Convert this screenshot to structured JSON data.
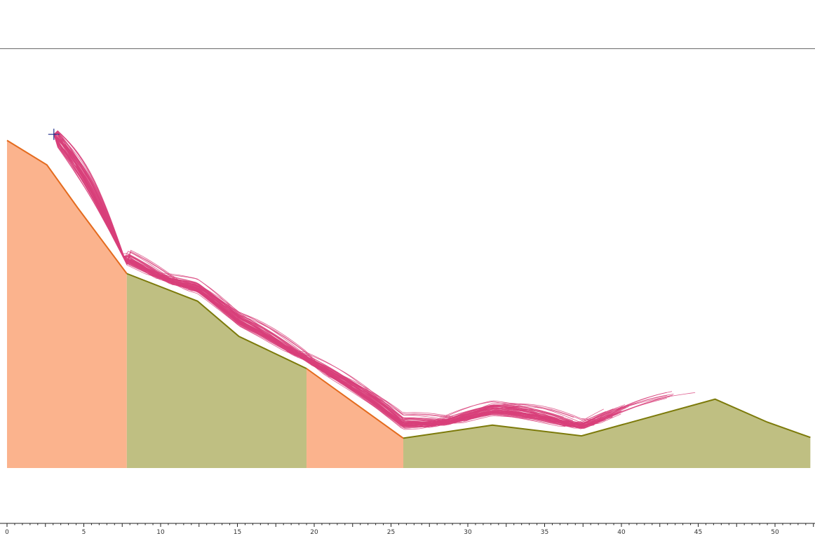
{
  "chart_data": {
    "type": "area",
    "title": "",
    "xlabel": "",
    "ylabel": "",
    "xlim": [
      0,
      52.6
    ],
    "grid": false,
    "x_ticks": [
      0,
      5,
      10,
      15,
      20,
      25,
      30,
      35,
      40,
      45,
      50
    ],
    "x_tick_labels": [
      "0",
      "5",
      "10",
      "15",
      "20",
      "25",
      "30",
      "35",
      "40",
      "45",
      "50"
    ],
    "slope_profile": {
      "x": [
        0,
        2.6,
        4.6,
        7.8,
        12.4,
        15.1,
        19.5,
        25.8,
        31.6,
        37.4,
        46.1,
        49.5,
        52.3
      ],
      "y": [
        21.4,
        19.8,
        17.0,
        12.7,
        10.9,
        8.6,
        6.5,
        1.95,
        2.8,
        2.1,
        4.5,
        3.0,
        2.0
      ]
    },
    "base_elevation": 0,
    "materials": [
      {
        "x_from": 0,
        "x_to": 7.8,
        "color": "#fbb38d",
        "edge": "#e46b1e"
      },
      {
        "x_from": 7.8,
        "x_to": 19.5,
        "color": "#bfbf82",
        "edge": "#7c7a0a"
      },
      {
        "x_from": 19.5,
        "x_to": 25.8,
        "color": "#fbb38d",
        "edge": "#e46b1e"
      },
      {
        "x_from": 25.8,
        "x_to": 52.3,
        "color": "#bfbf82",
        "edge": "#7c7a0a"
      }
    ],
    "seeder": {
      "x": 3.05,
      "y": 21.8,
      "color": "#1f2e8c"
    },
    "trajectory_color": "#d8407a",
    "trajectory_count": 60,
    "trajectory_end_x": 44.8
  }
}
